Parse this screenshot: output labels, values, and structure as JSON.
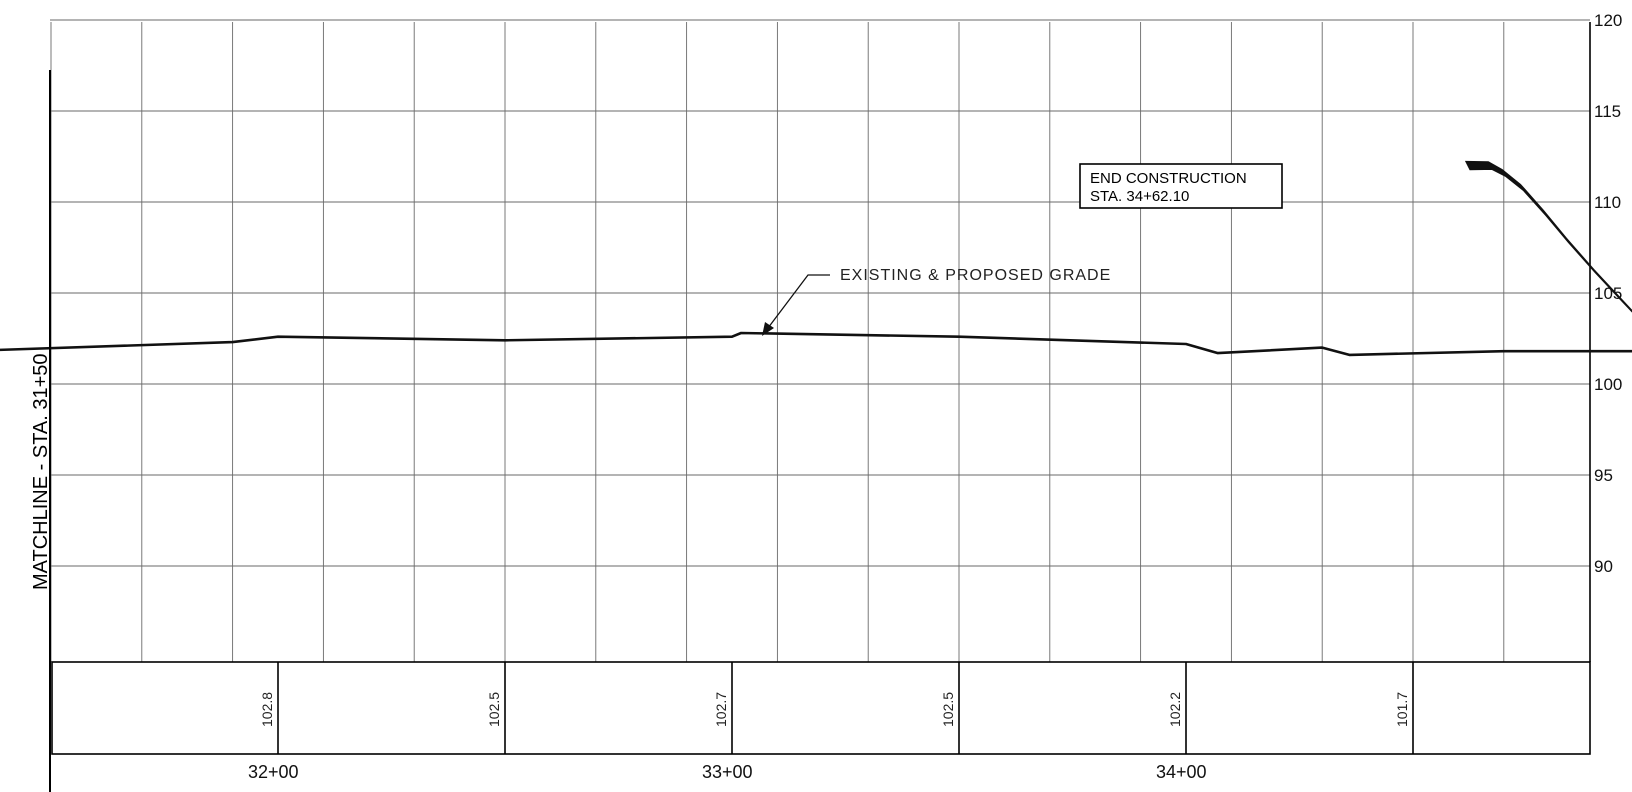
{
  "matchline_label": "MATCHLINE - STA. 31+50",
  "end_construction": {
    "line1": "END CONSTRUCTION",
    "line2": "STA. 34+62.10"
  },
  "grade_callout": "EXISTING & PROPOSED GRADE",
  "chart_data": {
    "type": "line",
    "elevation_ticks": [
      "120",
      "115",
      "110",
      "105",
      "100",
      "95",
      "90"
    ],
    "station_labels": [
      "32+00",
      "33+00",
      "34+00"
    ],
    "elevation_values": [
      {
        "station": 3200,
        "value": "102.8"
      },
      {
        "station": 3250,
        "value": "102.5"
      },
      {
        "station": 3300,
        "value": "102.7"
      },
      {
        "station": 3350,
        "value": "102.5"
      },
      {
        "station": 3400,
        "value": "102.2"
      },
      {
        "station": 3450,
        "value": "101.7"
      }
    ],
    "grade_profile": {
      "stations": [
        3130,
        3190,
        3200,
        3250,
        3300,
        3302,
        3350,
        3400,
        3407,
        3430,
        3436,
        3470,
        3500,
        3516
      ],
      "elevations": [
        101.8,
        102.3,
        102.6,
        102.4,
        102.6,
        102.8,
        102.6,
        102.2,
        101.7,
        102.0,
        101.6,
        101.8,
        101.8,
        101.9
      ]
    },
    "tie_in_curve": {
      "stations": [
        3462.1,
        3467,
        3470,
        3474,
        3479,
        3484,
        3490,
        3496,
        3502,
        3507
      ],
      "elevations": [
        112.0,
        112.0,
        111.6,
        110.8,
        109.4,
        107.9,
        106.2,
        104.6,
        103.0,
        101.8
      ]
    },
    "x_range": [
      3130,
      3516
    ],
    "y_range": [
      85,
      121
    ],
    "grid": true
  }
}
